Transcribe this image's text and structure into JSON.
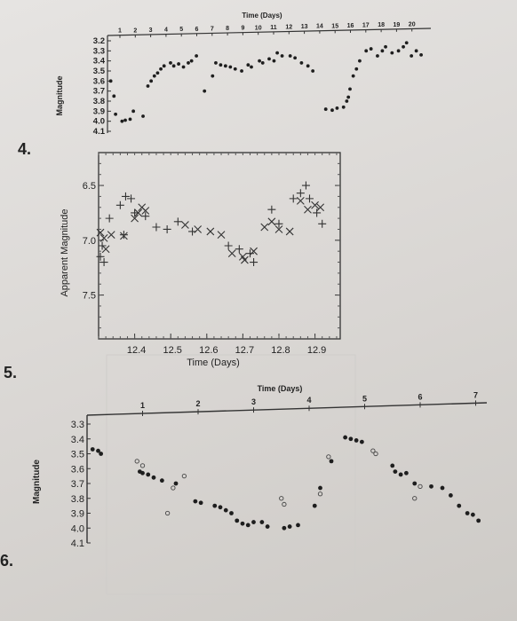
{
  "questions": {
    "q4": "4.",
    "q5": "5.",
    "q6": "6."
  },
  "chart_data": [
    {
      "type": "scatter",
      "xlabel": "Time (Days)",
      "ylabel": "Magnitude",
      "x_ticks": [
        "1",
        "2",
        "3",
        "4",
        "5",
        "6",
        "7",
        "8",
        "9",
        "10",
        "11",
        "12",
        "13",
        "14",
        "15",
        "16",
        "17",
        "18",
        "19",
        "20"
      ],
      "y_ticks": [
        "3.2",
        "3.3",
        "3.4",
        "3.5",
        "3.6",
        "3.7",
        "3.8",
        "3.9",
        "4.0",
        "4.1"
      ],
      "xlim": [
        0,
        20
      ],
      "ylim": [
        3.2,
        4.1
      ],
      "y_inverted": true,
      "x_axis_position": "top",
      "grid": false,
      "points": [
        [
          0.2,
          3.6
        ],
        [
          0.4,
          3.75
        ],
        [
          0.5,
          3.93
        ],
        [
          0.9,
          4.0
        ],
        [
          1.1,
          3.99
        ],
        [
          1.4,
          3.98
        ],
        [
          1.6,
          3.9
        ],
        [
          2.2,
          3.95
        ],
        [
          2.5,
          3.65
        ],
        [
          2.7,
          3.6
        ],
        [
          2.9,
          3.55
        ],
        [
          3.1,
          3.52
        ],
        [
          3.3,
          3.48
        ],
        [
          3.5,
          3.45
        ],
        [
          3.9,
          3.42
        ],
        [
          4.1,
          3.45
        ],
        [
          4.4,
          3.43
        ],
        [
          4.7,
          3.46
        ],
        [
          5.0,
          3.42
        ],
        [
          5.2,
          3.4
        ],
        [
          5.5,
          3.35
        ],
        [
          6.0,
          3.7
        ],
        [
          6.5,
          3.55
        ],
        [
          6.7,
          3.42
        ],
        [
          7.0,
          3.44
        ],
        [
          7.3,
          3.45
        ],
        [
          7.6,
          3.46
        ],
        [
          7.9,
          3.48
        ],
        [
          8.3,
          3.5
        ],
        [
          8.7,
          3.44
        ],
        [
          8.9,
          3.46
        ],
        [
          9.4,
          3.4
        ],
        [
          9.6,
          3.42
        ],
        [
          10.0,
          3.38
        ],
        [
          10.3,
          3.4
        ],
        [
          10.5,
          3.32
        ],
        [
          10.8,
          3.35
        ],
        [
          11.3,
          3.35
        ],
        [
          11.6,
          3.37
        ],
        [
          12.0,
          3.42
        ],
        [
          12.4,
          3.45
        ],
        [
          12.7,
          3.5
        ],
        [
          13.5,
          3.88
        ],
        [
          13.9,
          3.89
        ],
        [
          14.2,
          3.87
        ],
        [
          14.6,
          3.86
        ],
        [
          14.8,
          3.8
        ],
        [
          14.9,
          3.76
        ],
        [
          15.0,
          3.68
        ],
        [
          15.2,
          3.55
        ],
        [
          15.4,
          3.48
        ],
        [
          15.6,
          3.4
        ],
        [
          16.0,
          3.3
        ],
        [
          16.3,
          3.28
        ],
        [
          16.7,
          3.35
        ],
        [
          17.0,
          3.3
        ],
        [
          17.2,
          3.26
        ],
        [
          17.6,
          3.32
        ],
        [
          18.0,
          3.3
        ],
        [
          18.3,
          3.26
        ],
        [
          18.5,
          3.22
        ],
        [
          18.8,
          3.35
        ],
        [
          19.1,
          3.3
        ],
        [
          19.4,
          3.34
        ]
      ]
    },
    {
      "type": "scatter",
      "xlabel": "Time (Days)",
      "ylabel": "Apparent Magnitude",
      "x_ticks": [
        "12.4",
        "12.5",
        "12.6",
        "12.7",
        "12.8",
        "12.9"
      ],
      "y_ticks": [
        "6.5",
        "7.0",
        "7.5"
      ],
      "xlim": [
        12.3,
        12.97
      ],
      "ylim": [
        6.2,
        7.9
      ],
      "y_inverted": true,
      "grid": false,
      "series": [
        {
          "marker": "+",
          "points": [
            [
              12.305,
              7.15
            ],
            [
              12.31,
              7.05
            ],
            [
              12.315,
              7.2
            ],
            [
              12.33,
              6.8
            ],
            [
              12.36,
              6.68
            ],
            [
              12.37,
              6.95
            ],
            [
              12.375,
              6.6
            ],
            [
              12.39,
              6.62
            ],
            [
              12.4,
              6.75
            ],
            [
              12.43,
              6.78
            ],
            [
              12.46,
              6.88
            ],
            [
              12.49,
              6.9
            ],
            [
              12.52,
              6.83
            ],
            [
              12.56,
              6.92
            ],
            [
              12.66,
              7.05
            ],
            [
              12.69,
              7.08
            ],
            [
              12.72,
              7.12
            ],
            [
              12.73,
              7.2
            ],
            [
              12.78,
              6.72
            ],
            [
              12.8,
              6.85
            ],
            [
              12.84,
              6.62
            ],
            [
              12.86,
              6.57
            ],
            [
              12.875,
              6.5
            ],
            [
              12.885,
              6.62
            ],
            [
              12.905,
              6.75
            ],
            [
              12.92,
              6.85
            ]
          ]
        },
        {
          "marker": "x",
          "points": [
            [
              12.305,
              6.93
            ],
            [
              12.315,
              6.98
            ],
            [
              12.32,
              7.08
            ],
            [
              12.335,
              6.95
            ],
            [
              12.37,
              6.96
            ],
            [
              12.4,
              6.8
            ],
            [
              12.41,
              6.75
            ],
            [
              12.42,
              6.7
            ],
            [
              12.43,
              6.73
            ],
            [
              12.54,
              6.86
            ],
            [
              12.575,
              6.9
            ],
            [
              12.61,
              6.92
            ],
            [
              12.64,
              6.95
            ],
            [
              12.67,
              7.12
            ],
            [
              12.7,
              7.15
            ],
            [
              12.705,
              7.18
            ],
            [
              12.73,
              7.1
            ],
            [
              12.76,
              6.88
            ],
            [
              12.78,
              6.83
            ],
            [
              12.8,
              6.9
            ],
            [
              12.83,
              6.92
            ],
            [
              12.86,
              6.64
            ],
            [
              12.88,
              6.72
            ],
            [
              12.9,
              6.68
            ],
            [
              12.915,
              6.7
            ]
          ]
        }
      ]
    },
    {
      "type": "scatter",
      "xlabel": "Time (Days)",
      "ylabel": "Magnitude",
      "x_ticks": [
        "1",
        "2",
        "3",
        "4",
        "5",
        "6",
        "7"
      ],
      "y_ticks": [
        "3.3",
        "3.4",
        "3.5",
        "3.6",
        "3.7",
        "3.8",
        "3.9",
        "4.0",
        "4.1"
      ],
      "xlim": [
        0,
        7.2
      ],
      "ylim": [
        3.3,
        4.1
      ],
      "y_inverted": true,
      "x_axis_position": "top",
      "grid": false,
      "series": [
        {
          "marker": "filled",
          "points": [
            [
              0.1,
              3.47
            ],
            [
              0.2,
              3.48
            ],
            [
              0.25,
              3.5
            ],
            [
              0.95,
              3.62
            ],
            [
              1.0,
              3.63
            ],
            [
              1.1,
              3.64
            ],
            [
              1.2,
              3.66
            ],
            [
              1.35,
              3.68
            ],
            [
              1.6,
              3.7
            ],
            [
              1.95,
              3.82
            ],
            [
              2.05,
              3.83
            ],
            [
              2.3,
              3.85
            ],
            [
              2.4,
              3.86
            ],
            [
              2.5,
              3.88
            ],
            [
              2.6,
              3.9
            ],
            [
              2.7,
              3.95
            ],
            [
              2.8,
              3.97
            ],
            [
              2.9,
              3.98
            ],
            [
              3.0,
              3.96
            ],
            [
              3.15,
              3.96
            ],
            [
              3.25,
              3.99
            ],
            [
              3.55,
              4.0
            ],
            [
              3.65,
              3.99
            ],
            [
              3.8,
              3.98
            ],
            [
              4.1,
              3.85
            ],
            [
              4.2,
              3.73
            ],
            [
              4.4,
              3.55
            ],
            [
              4.65,
              3.39
            ],
            [
              4.75,
              3.4
            ],
            [
              4.85,
              3.41
            ],
            [
              4.95,
              3.42
            ],
            [
              5.5,
              3.58
            ],
            [
              5.55,
              3.62
            ],
            [
              5.65,
              3.64
            ],
            [
              5.75,
              3.63
            ],
            [
              5.9,
              3.7
            ],
            [
              6.2,
              3.72
            ],
            [
              6.4,
              3.73
            ],
            [
              6.55,
              3.78
            ],
            [
              6.7,
              3.85
            ],
            [
              6.85,
              3.9
            ],
            [
              6.95,
              3.91
            ],
            [
              7.05,
              3.95
            ]
          ]
        },
        {
          "marker": "open",
          "points": [
            [
              0.9,
              3.55
            ],
            [
              1.0,
              3.58
            ],
            [
              1.75,
              3.65
            ],
            [
              1.55,
              3.73
            ],
            [
              1.45,
              3.9
            ],
            [
              3.5,
              3.8
            ],
            [
              3.55,
              3.84
            ],
            [
              4.2,
              3.77
            ],
            [
              4.35,
              3.52
            ],
            [
              5.15,
              3.48
            ],
            [
              5.2,
              3.5
            ],
            [
              5.9,
              3.8
            ],
            [
              6.0,
              3.72
            ]
          ]
        }
      ]
    }
  ]
}
